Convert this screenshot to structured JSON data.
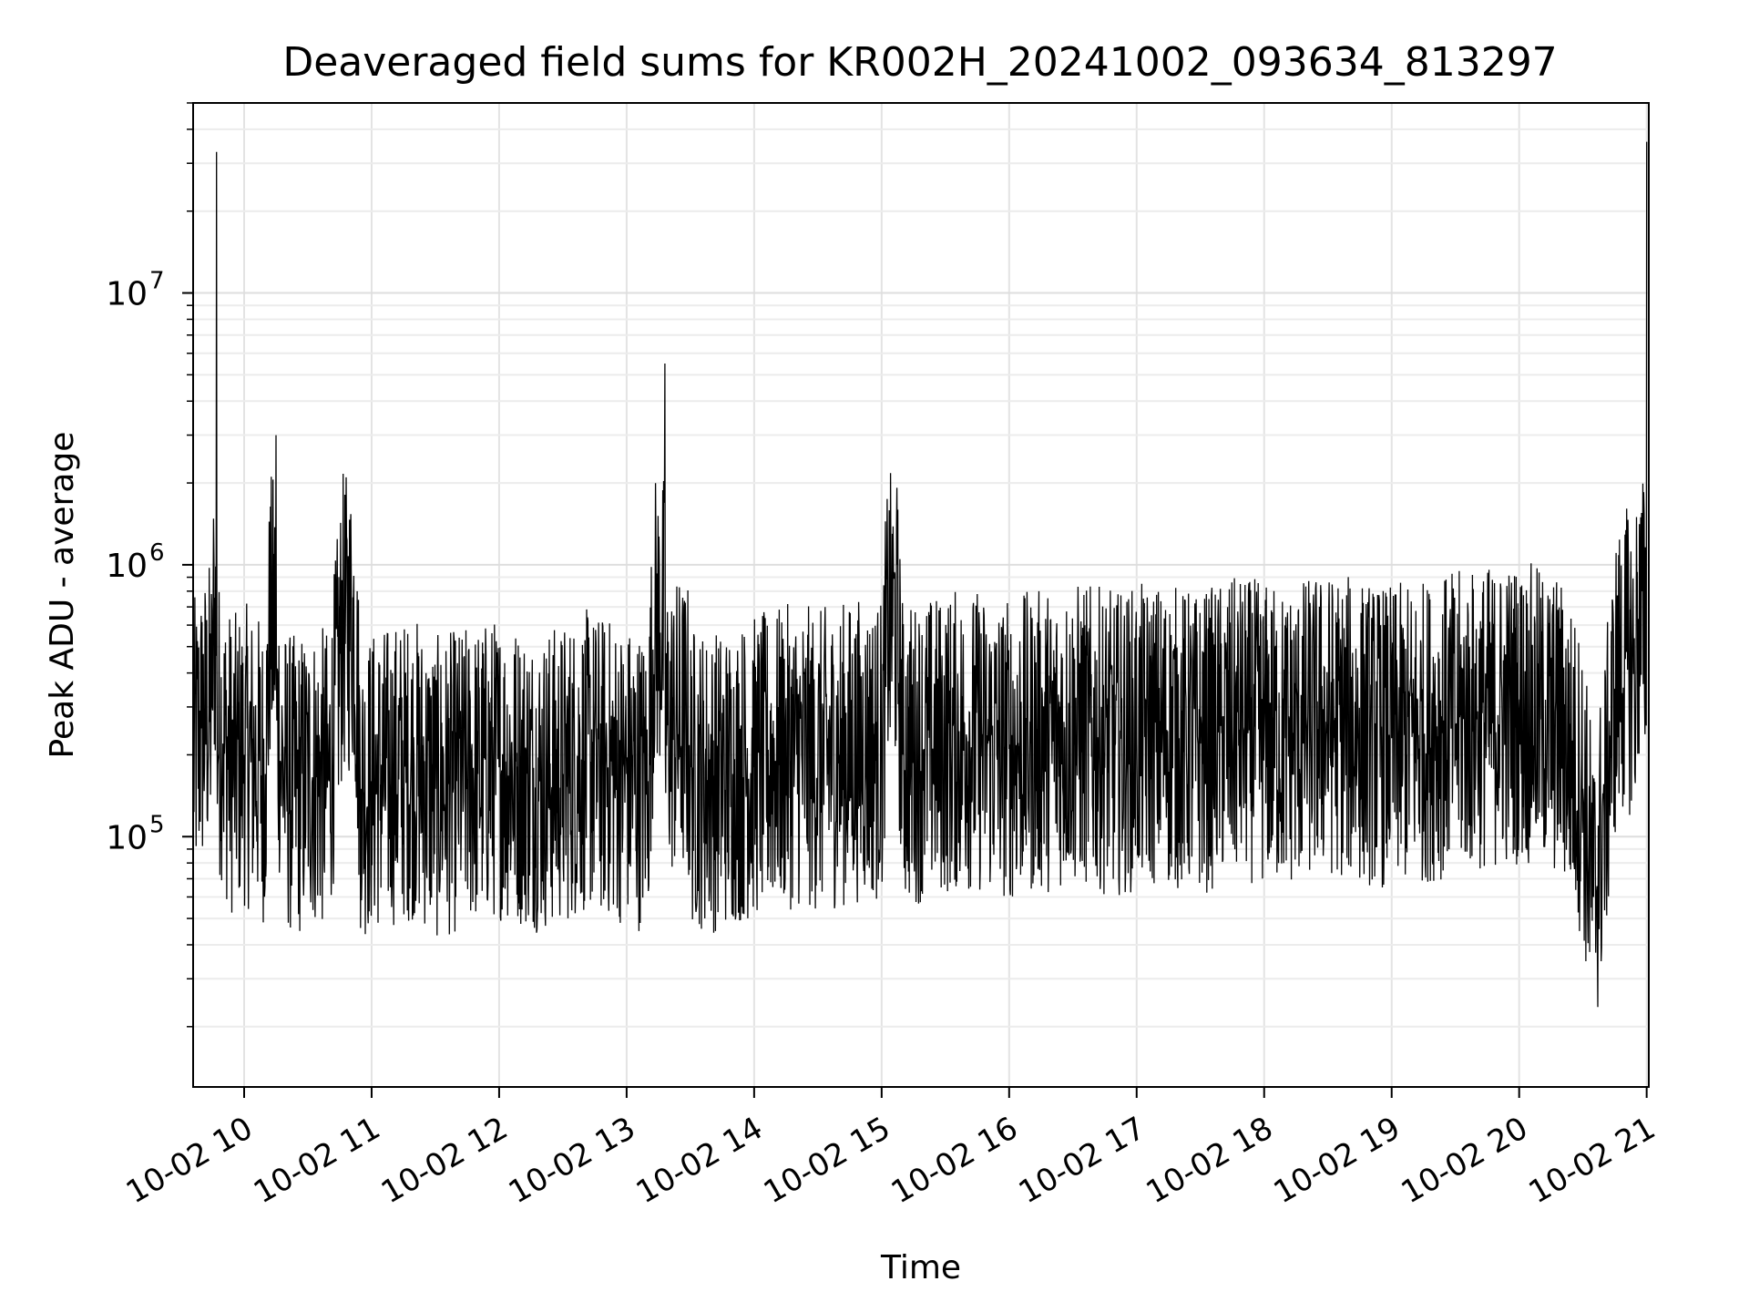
{
  "chart_data": {
    "type": "line",
    "title": "Deaveraged field sums for KR002H_20241002_093634_813297",
    "xlabel": "Time",
    "ylabel": "Peak ADU - average",
    "y_scale": "log",
    "x_range": [
      "2024-10-02 09:36",
      "2024-10-02 21:01"
    ],
    "ylim": [
      12000,
      50000000
    ],
    "grid": "major and minor, light gray",
    "line_color": "#000000",
    "x_ticks": [
      "10-02 10",
      "10-02 11",
      "10-02 12",
      "10-02 13",
      "10-02 14",
      "10-02 15",
      "10-02 16",
      "10-02 17",
      "10-02 18",
      "10-02 19",
      "10-02 20",
      "10-02 21"
    ],
    "y_ticks": [
      {
        "base": "10",
        "exp": "5"
      },
      {
        "base": "10",
        "exp": "6"
      },
      {
        "base": "10",
        "exp": "7"
      }
    ],
    "series": [
      {
        "values_note_count": 0,
        "x": [
          "09:36",
          "09:40",
          "09:45",
          "09:47",
          "09:50",
          "09:55",
          "10:00",
          "10:05",
          "10:10",
          "10:15",
          "10:17",
          "10:20",
          "10:25",
          "10:30",
          "10:40",
          "10:50",
          "10:55",
          "11:00",
          "11:10",
          "11:20",
          "11:30",
          "11:40",
          "11:50",
          "12:00",
          "12:10",
          "12:20",
          "12:30",
          "12:40",
          "12:50",
          "13:00",
          "13:10",
          "13:18",
          "13:30",
          "13:40",
          "13:50",
          "14:00",
          "14:10",
          "14:20",
          "14:30",
          "14:40",
          "14:50",
          "15:00",
          "15:05",
          "15:10",
          "15:20",
          "15:30",
          "15:40",
          "15:50",
          "16:00",
          "16:10",
          "16:20",
          "16:30",
          "16:40",
          "16:50",
          "17:00",
          "17:10",
          "17:20",
          "17:30",
          "17:40",
          "17:50",
          "18:00",
          "18:10",
          "18:20",
          "18:30",
          "18:40",
          "18:50",
          "19:00",
          "19:10",
          "19:20",
          "19:30",
          "19:40",
          "19:50",
          "20:00",
          "20:10",
          "20:20",
          "20:30",
          "20:35",
          "20:40",
          "20:45",
          "20:50",
          "20:55",
          "21:00"
        ],
        "y": [
          200000,
          250000,
          300000,
          33000000,
          220000,
          180000,
          200000,
          190000,
          170000,
          3000000,
          190000,
          160000,
          150000,
          170000,
          160000,
          1300000,
          150000,
          160000,
          170000,
          180000,
          150000,
          160000,
          170000,
          180000,
          170000,
          160000,
          170000,
          190000,
          180000,
          170000,
          160000,
          5500000,
          170000,
          160000,
          170000,
          180000,
          190000,
          200000,
          190000,
          200000,
          210000,
          210000,
          1300000,
          200000,
          210000,
          220000,
          230000,
          220000,
          210000,
          220000,
          230000,
          240000,
          230000,
          220000,
          230000,
          240000,
          230000,
          220000,
          240000,
          250000,
          240000,
          230000,
          250000,
          260000,
          250000,
          240000,
          230000,
          240000,
          250000,
          260000,
          270000,
          280000,
          290000,
          270000,
          250000,
          150000,
          60000,
          120000,
          350000,
          450000,
          420000,
          36000000
        ]
      }
    ]
  }
}
